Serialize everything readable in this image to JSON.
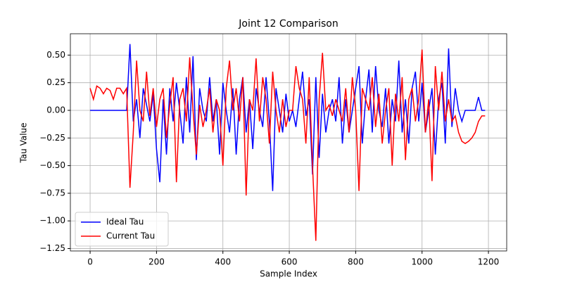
{
  "chart_data": {
    "type": "line",
    "title": "Joint 12 Comparison",
    "x_label": "Sample Index",
    "y_label": "Tau Value",
    "x": [
      0,
      10,
      20,
      30,
      40,
      50,
      60,
      70,
      80,
      90,
      100,
      110,
      120,
      130,
      140,
      150,
      160,
      170,
      180,
      190,
      200,
      210,
      220,
      230,
      240,
      250,
      260,
      270,
      280,
      290,
      300,
      310,
      320,
      330,
      340,
      350,
      360,
      370,
      380,
      390,
      400,
      410,
      420,
      430,
      440,
      450,
      460,
      470,
      480,
      490,
      500,
      510,
      520,
      530,
      540,
      550,
      560,
      570,
      580,
      590,
      600,
      610,
      620,
      630,
      640,
      650,
      660,
      670,
      680,
      690,
      700,
      710,
      720,
      730,
      740,
      750,
      760,
      770,
      780,
      790,
      800,
      810,
      820,
      830,
      840,
      850,
      860,
      870,
      880,
      890,
      900,
      910,
      920,
      930,
      940,
      950,
      960,
      970,
      980,
      990,
      1000,
      1010,
      1020,
      1030,
      1040,
      1050,
      1060,
      1070,
      1080,
      1090,
      1100,
      1110,
      1120,
      1130,
      1140,
      1150,
      1160,
      1170,
      1180,
      1190
    ],
    "series": [
      {
        "name": "Ideal Tau",
        "color": "#0000ff",
        "values": [
          0,
          0,
          0,
          0,
          0,
          0,
          0,
          0,
          0,
          0,
          0,
          0,
          0.6,
          -0.1,
          0.1,
          -0.25,
          0.2,
          0.05,
          -0.1,
          0.15,
          -0.35,
          -0.65,
          0.1,
          -0.4,
          0.2,
          -0.1,
          0.25,
          0.0,
          -0.3,
          0.3,
          -0.2,
          0.49,
          -0.45,
          0.2,
          0.0,
          -0.1,
          0.3,
          -0.1,
          0.1,
          -0.4,
          0.25,
          0.0,
          -0.2,
          0.2,
          -0.4,
          0.1,
          0.3,
          -0.2,
          0.1,
          -0.35,
          0.2,
          0.0,
          -0.15,
          0.3,
          -0.1,
          -0.73,
          0.2,
          0.0,
          -0.2,
          0.15,
          -0.1,
          0.0,
          -0.15,
          0.1,
          0.35,
          -0.05,
          0.1,
          -0.58,
          0.3,
          -0.43,
          0.15,
          -0.2,
          0.0,
          0.1,
          -0.1,
          0.3,
          -0.3,
          0.1,
          -0.2,
          0.0,
          0.2,
          0.4,
          -0.3,
          0.1,
          0.37,
          -0.2,
          0.4,
          0.0,
          -0.15,
          0.2,
          -0.3,
          0.1,
          -0.1,
          0.45,
          -0.2,
          0.1,
          -0.3,
          0.2,
          0.35,
          -0.1,
          0.25,
          -0.2,
          0.0,
          0.2,
          -0.4,
          0.1,
          0.25,
          -0.3,
          0.56,
          -0.15,
          0.2,
          0.0,
          -0.1,
          0.0,
          0.0,
          0.0,
          0.0,
          0.12,
          0.0,
          0.0
        ]
      },
      {
        "name": "Current Tau",
        "color": "#ff0000",
        "values": [
          0.2,
          0.1,
          0.22,
          0.2,
          0.15,
          0.2,
          0.18,
          0.1,
          0.2,
          0.2,
          0.15,
          0.2,
          -0.7,
          -0.2,
          0.45,
          0.0,
          -0.1,
          0.35,
          -0.05,
          0.2,
          -0.15,
          0.1,
          0.2,
          -0.25,
          0.05,
          0.3,
          -0.65,
          0.1,
          0.2,
          -0.1,
          0.48,
          0.0,
          -0.4,
          0.05,
          -0.15,
          0.0,
          0.2,
          -0.2,
          0.1,
          0.0,
          -0.5,
          0.2,
          0.45,
          0.0,
          0.2,
          -0.1,
          0.3,
          -0.77,
          0.1,
          0.0,
          0.47,
          -0.1,
          0.3,
          0.1,
          -0.3,
          0.35,
          0.0,
          -0.2,
          0.1,
          -0.15,
          0.0,
          0.0,
          0.4,
          0.2,
          0.1,
          -0.3,
          0.3,
          -0.5,
          -1.18,
          0.1,
          0.52,
          0.0,
          0.05,
          -0.05,
          0.1,
          0.0,
          -0.1,
          0.2,
          -0.2,
          0.3,
          0.0,
          -0.73,
          0.2,
          0.1,
          0.0,
          0.3,
          -0.15,
          0.15,
          -0.3,
          0.0,
          0.2,
          -0.5,
          0.15,
          -0.1,
          0.3,
          -0.45,
          0.1,
          0.2,
          -0.1,
          0.1,
          0.55,
          -0.2,
          0.1,
          -0.64,
          0.4,
          0.0,
          0.35,
          -0.1,
          0.1,
          -0.1,
          -0.05,
          -0.2,
          -0.28,
          -0.3,
          -0.28,
          -0.25,
          -0.2,
          -0.1,
          -0.05,
          -0.05
        ]
      }
    ],
    "xlim": [
      -59.5,
      1255
    ],
    "ylim": [
      -1.272,
      0.693
    ],
    "xticks": [
      0,
      200,
      400,
      600,
      800,
      1000,
      1200
    ],
    "yticks": [
      {
        "value": 0.5,
        "label": "0.50"
      },
      {
        "value": 0.25,
        "label": "0.25"
      },
      {
        "value": 0,
        "label": "0.00"
      },
      {
        "value": -0.25,
        "label": "−0.25"
      },
      {
        "value": -0.5,
        "label": "−0.50"
      },
      {
        "value": -0.75,
        "label": "−0.75"
      },
      {
        "value": -1,
        "label": "−1.00"
      },
      {
        "value": -1.25,
        "label": "−1.25"
      }
    ],
    "grid": true,
    "legend": "lower-left"
  }
}
